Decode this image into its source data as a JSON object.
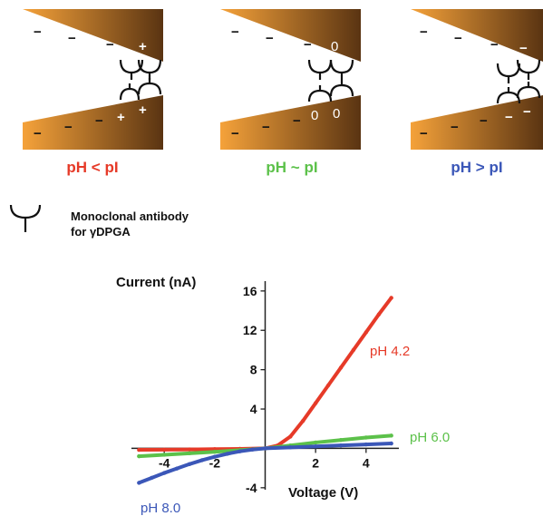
{
  "panels": [
    {
      "label": "pH < pI",
      "color": "#e63a28",
      "top_charges": [
        "−",
        "−",
        "−",
        "+"
      ],
      "bottom_charges": [
        "−",
        "−",
        "−",
        "+",
        "+"
      ]
    },
    {
      "label": "pH ~ pI",
      "color": "#5cc14a",
      "top_charges": [
        "−",
        "−",
        "−",
        "0"
      ],
      "bottom_charges": [
        "−",
        "−",
        "−",
        "0",
        "0"
      ]
    },
    {
      "label": "pH > pI",
      "color": "#3b57b8",
      "top_charges": [
        "−",
        "−",
        "−",
        "−"
      ],
      "bottom_charges": [
        "−",
        "−",
        "−",
        "−",
        "−"
      ]
    }
  ],
  "legend": {
    "line1": "Monoclonal antibody",
    "line2": "for γDPGA",
    "icon": "antibody-y-icon"
  },
  "colors": {
    "channel_light": "#f5a23a",
    "channel_dark": "#5a3412"
  },
  "chart_data": {
    "type": "line",
    "ylabel": "Current (nA)",
    "xlabel": "Voltage (V)",
    "xlim": [
      -5.3,
      5.3
    ],
    "ylim": [
      -4.2,
      17
    ],
    "x_ticks": [
      -4,
      -2,
      2,
      4
    ],
    "y_ticks": [
      -4,
      4,
      8,
      12,
      16
    ],
    "grid": false,
    "series": [
      {
        "name": "pH 4.2",
        "color": "#e63a28",
        "x": [
          -5,
          -4,
          -3,
          -2,
          -1,
          0,
          0.5,
          1,
          1.5,
          2,
          2.5,
          3,
          3.5,
          4,
          4.5,
          5
        ],
        "y": [
          -0.15,
          -0.13,
          -0.11,
          -0.08,
          -0.05,
          0,
          0.3,
          1.2,
          2.8,
          4.6,
          6.4,
          8.2,
          10,
          11.8,
          13.6,
          15.3
        ]
      },
      {
        "name": "pH 6.0",
        "color": "#5cc14a",
        "x": [
          -5,
          -4,
          -3,
          -2,
          -1,
          0,
          1,
          2,
          3,
          4,
          5
        ],
        "y": [
          -0.8,
          -0.65,
          -0.5,
          -0.35,
          -0.18,
          0,
          0.3,
          0.6,
          0.85,
          1.1,
          1.3
        ]
      },
      {
        "name": "pH 8.0",
        "color": "#3b57b8",
        "x": [
          -5,
          -4.5,
          -4,
          -3.5,
          -3,
          -2.5,
          -2,
          -1.5,
          -1,
          -0.5,
          0,
          1,
          2,
          3,
          4,
          5
        ],
        "y": [
          -3.5,
          -3,
          -2.5,
          -2.05,
          -1.6,
          -1.2,
          -0.85,
          -0.55,
          -0.3,
          -0.12,
          0,
          0.1,
          0.2,
          0.3,
          0.4,
          0.5
        ]
      }
    ]
  }
}
